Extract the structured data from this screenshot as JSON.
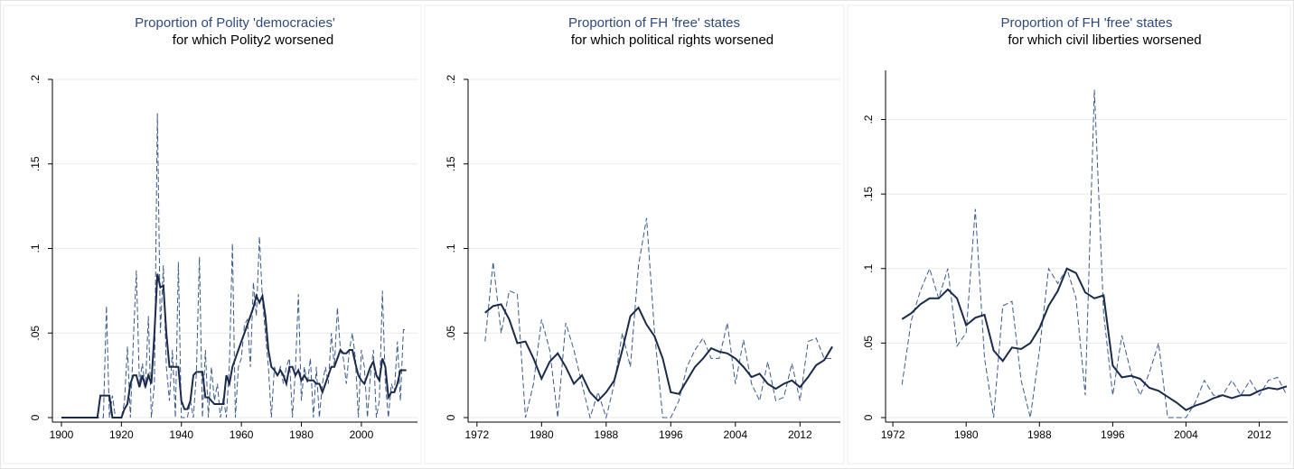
{
  "chart_data": [
    {
      "type": "line",
      "title": "Proportion of Polity 'democracies'",
      "subtitle": "for which Polity2 worsened",
      "x": [
        1900,
        1901,
        1902,
        1903,
        1904,
        1905,
        1906,
        1907,
        1908,
        1909,
        1910,
        1911,
        1912,
        1913,
        1914,
        1915,
        1916,
        1917,
        1918,
        1919,
        1920,
        1921,
        1922,
        1923,
        1924,
        1925,
        1926,
        1927,
        1928,
        1929,
        1930,
        1931,
        1932,
        1933,
        1934,
        1935,
        1936,
        1937,
        1938,
        1939,
        1940,
        1941,
        1942,
        1943,
        1944,
        1945,
        1946,
        1947,
        1948,
        1949,
        1950,
        1951,
        1952,
        1953,
        1954,
        1955,
        1956,
        1957,
        1958,
        1959,
        1960,
        1961,
        1962,
        1963,
        1964,
        1965,
        1966,
        1967,
        1968,
        1969,
        1970,
        1971,
        1972,
        1973,
        1974,
        1975,
        1976,
        1977,
        1978,
        1979,
        1980,
        1981,
        1982,
        1983,
        1984,
        1985,
        1986,
        1987,
        1988,
        1989,
        1990,
        1991,
        1992,
        1993,
        1994,
        1995,
        1996,
        1997,
        1998,
        1999,
        2000,
        2001,
        2002,
        2003,
        2004,
        2005,
        2006,
        2007,
        2008,
        2009,
        2010,
        2011,
        2012,
        2013,
        2014,
        2015
      ],
      "series": [
        {
          "color": "#3c5a8a",
          "line_style": "dashed",
          "values": [
            0,
            0,
            0,
            0,
            0,
            0,
            0,
            0,
            0,
            0,
            0,
            0,
            0,
            0,
            0,
            0.066,
            0,
            0.013,
            0,
            0,
            0,
            0.009,
            0.042,
            0,
            0.046,
            0.087,
            0.02,
            0.032,
            0.017,
            0.06,
            0,
            0.02,
            0.18,
            0.05,
            0.09,
            0.03,
            0.01,
            0.04,
            0,
            0.092,
            0,
            0,
            0,
            0.01,
            0,
            0.026,
            0.095,
            0,
            0.04,
            0,
            0.03,
            0.01,
            0.02,
            0,
            0.012,
            0,
            0.032,
            0.103,
            0,
            0.03,
            0.035,
            0.055,
            0.058,
            0.03,
            0.08,
            0.06,
            0.107,
            0.07,
            0.05,
            0.03,
            0,
            0.03,
            0.025,
            0.03,
            0.02,
            0.03,
            0.035,
            0,
            0.028,
            0.073,
            0.01,
            0.03,
            0.02,
            0.035,
            0,
            0.03,
            0,
            0.02,
            0.03,
            0.02,
            0.05,
            0.03,
            0.065,
            0.04,
            0.035,
            0.02,
            0.04,
            0.05,
            0.035,
            0,
            0.04,
            0.03,
            0,
            0.025,
            0.04,
            0,
            0.01,
            0.075,
            0.02,
            0,
            0.02,
            0.015,
            0.045,
            0.01,
            0.052,
            0.052
          ]
        },
        {
          "color": "#1a2a4a",
          "line_style": "solid",
          "values": [
            0,
            0,
            0,
            0,
            0,
            0,
            0,
            0,
            0,
            0,
            0,
            0,
            0,
            0.013,
            0.013,
            0.013,
            0.013,
            0,
            0,
            0,
            0,
            0.005,
            0.008,
            0.02,
            0.025,
            0.025,
            0.018,
            0.025,
            0.018,
            0.025,
            0.02,
            0.05,
            0.085,
            0.077,
            0.078,
            0.05,
            0.03,
            0.03,
            0.03,
            0.03,
            0.01,
            0.005,
            0.005,
            0.01,
            0.025,
            0.027,
            0.027,
            0.027,
            0.012,
            0.012,
            0.01,
            0.008,
            0.008,
            0.008,
            0.008,
            0.025,
            0.02,
            0.03,
            0.035,
            0.04,
            0.045,
            0.05,
            0.055,
            0.06,
            0.065,
            0.072,
            0.068,
            0.072,
            0.06,
            0.04,
            0.03,
            0.028,
            0.025,
            0.028,
            0.025,
            0.02,
            0.03,
            0.03,
            0.025,
            0.028,
            0.022,
            0.025,
            0.022,
            0.022,
            0.022,
            0.02,
            0.02,
            0.015,
            0.02,
            0.025,
            0.03,
            0.03,
            0.035,
            0.04,
            0.038,
            0.038,
            0.04,
            0.04,
            0.032,
            0.025,
            0.022,
            0.02,
            0.025,
            0.03,
            0.033,
            0.025,
            0.022,
            0.035,
            0.03,
            0.012,
            0.015,
            0.015,
            0.02,
            0.028,
            0.028,
            0.028
          ]
        }
      ],
      "xlim": [
        1897,
        2018.7
      ],
      "xticks": [
        1900,
        1920,
        1940,
        1960,
        1980,
        2000
      ],
      "ylim": [
        0,
        0.2
      ],
      "yticks": [
        0,
        {
          "value": 0.05,
          "label": ".05"
        },
        {
          "value": 0.1,
          "label": ".1"
        },
        {
          "value": 0.15,
          "label": ".15"
        },
        {
          "value": 0.2,
          "label": ".2"
        }
      ],
      "grid": true
    },
    {
      "type": "line",
      "title": "Proportion of FH 'free' states",
      "subtitle": "for which political rights worsened",
      "x": [
        1973,
        1974,
        1975,
        1976,
        1977,
        1978,
        1979,
        1980,
        1981,
        1982,
        1983,
        1984,
        1985,
        1986,
        1987,
        1988,
        1989,
        1990,
        1991,
        1992,
        1993,
        1994,
        1995,
        1996,
        1997,
        1998,
        1999,
        2000,
        2001,
        2002,
        2003,
        2004,
        2005,
        2006,
        2007,
        2008,
        2009,
        2010,
        2011,
        2012,
        2013,
        2014,
        2015,
        2016
      ],
      "series": [
        {
          "color": "#3c5a8a",
          "line_style": "dashed",
          "values": [
            0.045,
            0.092,
            0.05,
            0.075,
            0.073,
            0,
            0.02,
            0.058,
            0.04,
            0,
            0.056,
            0.04,
            0.02,
            0,
            0.015,
            0,
            0.02,
            0.05,
            0.03,
            0.09,
            0.118,
            0.05,
            0,
            0,
            0.01,
            0.03,
            0.04,
            0.047,
            0.035,
            0.035,
            0.056,
            0.02,
            0.046,
            0.02,
            0.01,
            0.033,
            0.01,
            0.012,
            0.032,
            0.01,
            0.045,
            0.047,
            0.035,
            0.035
          ]
        },
        {
          "color": "#1a2a4a",
          "line_style": "solid",
          "values": [
            0.062,
            0.066,
            0.067,
            0.058,
            0.044,
            0.045,
            0.035,
            0.023,
            0.033,
            0.038,
            0.03,
            0.02,
            0.025,
            0.015,
            0.01,
            0.015,
            0.022,
            0.04,
            0.06,
            0.065,
            0.055,
            0.048,
            0.035,
            0.015,
            0.014,
            0.022,
            0.03,
            0.035,
            0.041,
            0.039,
            0.038,
            0.035,
            0.03,
            0.024,
            0.026,
            0.02,
            0.017,
            0.02,
            0.022,
            0.018,
            0.024,
            0.031,
            0.034,
            0.042
          ]
        }
      ],
      "xlim": [
        1970.9,
        2017
      ],
      "xticks": [
        1972,
        1980,
        1988,
        1996,
        2004,
        2012
      ],
      "ylim": [
        0,
        0.2
      ],
      "yticks": [
        0,
        {
          "value": 0.05,
          "label": ".05"
        },
        {
          "value": 0.1,
          "label": ".1"
        },
        {
          "value": 0.15,
          "label": ".15"
        },
        {
          "value": 0.2,
          "label": ".2"
        }
      ],
      "grid": true
    },
    {
      "type": "line",
      "title": "Proportion of FH 'free' states",
      "subtitle": "for which civil liberties worsened",
      "x": [
        1973,
        1974,
        1975,
        1976,
        1977,
        1978,
        1979,
        1980,
        1981,
        1982,
        1983,
        1984,
        1985,
        1986,
        1987,
        1988,
        1989,
        1990,
        1991,
        1992,
        1993,
        1994,
        1995,
        1996,
        1997,
        1998,
        1999,
        2000,
        2001,
        2002,
        2003,
        2004,
        2005,
        2006,
        2007,
        2008,
        2009,
        2010,
        2011,
        2012,
        2013,
        2014,
        2015
      ],
      "series": [
        {
          "color": "#3c5a8a",
          "line_style": "dashed",
          "values": [
            0.022,
            0.065,
            0.085,
            0.1,
            0.08,
            0.1,
            0.048,
            0.057,
            0.14,
            0.04,
            0,
            0.075,
            0.078,
            0.025,
            0,
            0.045,
            0.1,
            0.09,
            0.1,
            0.08,
            0.015,
            0.22,
            0.07,
            0.015,
            0.055,
            0.03,
            0.015,
            0.03,
            0.05,
            0,
            0,
            0,
            0.01,
            0.025,
            0.015,
            0.015,
            0.025,
            0.015,
            0.025,
            0.015,
            0.025,
            0.027,
            0.015
          ]
        },
        {
          "color": "#1a2a4a",
          "line_style": "solid",
          "values": [
            0.066,
            0.07,
            0.076,
            0.08,
            0.08,
            0.086,
            0.08,
            0.062,
            0.067,
            0.069,
            0.045,
            0.038,
            0.047,
            0.046,
            0.05,
            0.06,
            0.075,
            0.085,
            0.1,
            0.097,
            0.084,
            0.08,
            0.082,
            0.035,
            0.027,
            0.028,
            0.026,
            0.02,
            0.018,
            0.014,
            0.01,
            0.005,
            0.008,
            0.01,
            0.013,
            0.015,
            0.013,
            0.015,
            0.015,
            0.018,
            0.02,
            0.019,
            0.021
          ]
        }
      ],
      "xlim": [
        1971.2,
        2015.1
      ],
      "xticks": [
        1972,
        1980,
        1988,
        1996,
        2004,
        2012
      ],
      "ylim": [
        0,
        0.233
      ],
      "yticks": [
        0,
        {
          "value": 0.05,
          "label": ".05"
        },
        {
          "value": 0.1,
          "label": ".1"
        },
        {
          "value": 0.15,
          "label": ".15"
        },
        {
          "value": 0.2,
          "label": ".2"
        }
      ],
      "grid": true
    }
  ]
}
